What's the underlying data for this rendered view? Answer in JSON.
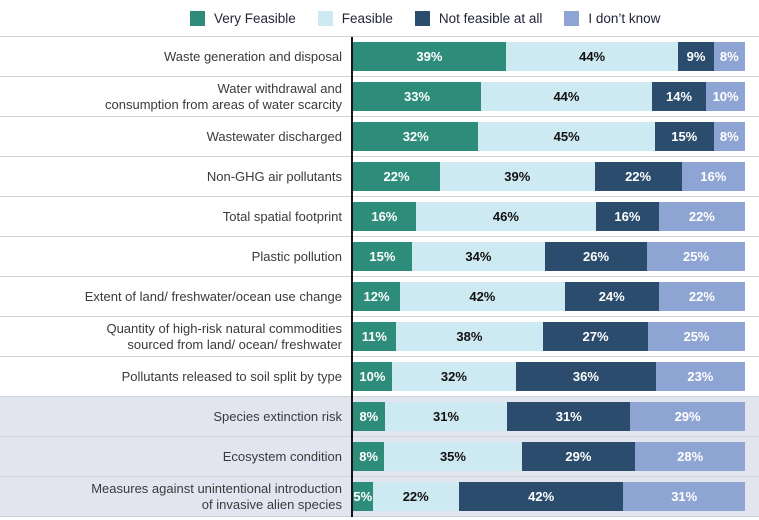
{
  "colors": {
    "very_feasible": "#2e8c7b",
    "feasible": "#cde9f1",
    "not_feasible_at_all": "#2b4c6c",
    "i_dont_know": "#8ea4d2",
    "row_highlight": "#e2e5f0",
    "axis": "#151515",
    "separator": "#cdd1d8",
    "label_text": "#3a3a3a"
  },
  "chart_data": {
    "type": "bar",
    "orientation": "horizontal",
    "stacked": true,
    "unit": "%",
    "xlim": [
      0,
      100
    ],
    "grid": false,
    "legend_position": "top",
    "categories": [
      "Waste generation and disposal",
      "Water withdrawal and\nconsumption from areas of water scarcity",
      "Wastewater discharged",
      "Non-GHG air pollutants",
      "Total spatial footprint",
      "Plastic pollution",
      "Extent of land/ freshwater/ocean use change",
      "Quantity of high-risk natural commodities\nsourced from land/ ocean/ freshwater",
      "Pollutants released to soil split by type",
      "Species extinction risk",
      "Ecosystem condition",
      "Measures against unintentional introduction\nof invasive alien species"
    ],
    "highlighted_category_indices": [
      9,
      10,
      11
    ],
    "series": [
      {
        "name": "Very Feasible",
        "color": "#2e8c7b",
        "label_color": "#ffffff",
        "values": [
          39,
          33,
          32,
          22,
          16,
          15,
          12,
          11,
          10,
          8,
          8,
          5
        ]
      },
      {
        "name": "Feasible",
        "color": "#cde9f1",
        "label_color": "#111111",
        "values": [
          44,
          44,
          45,
          39,
          46,
          34,
          42,
          38,
          32,
          31,
          35,
          22
        ]
      },
      {
        "name": "Not feasible at all",
        "color": "#2b4c6c",
        "label_color": "#ffffff",
        "values": [
          9,
          14,
          15,
          22,
          16,
          26,
          24,
          27,
          36,
          31,
          29,
          42
        ]
      },
      {
        "name": "I don’t know",
        "color": "#8ea4d2",
        "label_color": "#ffffff",
        "values": [
          8,
          10,
          8,
          16,
          22,
          25,
          22,
          25,
          23,
          29,
          28,
          31
        ]
      }
    ]
  }
}
